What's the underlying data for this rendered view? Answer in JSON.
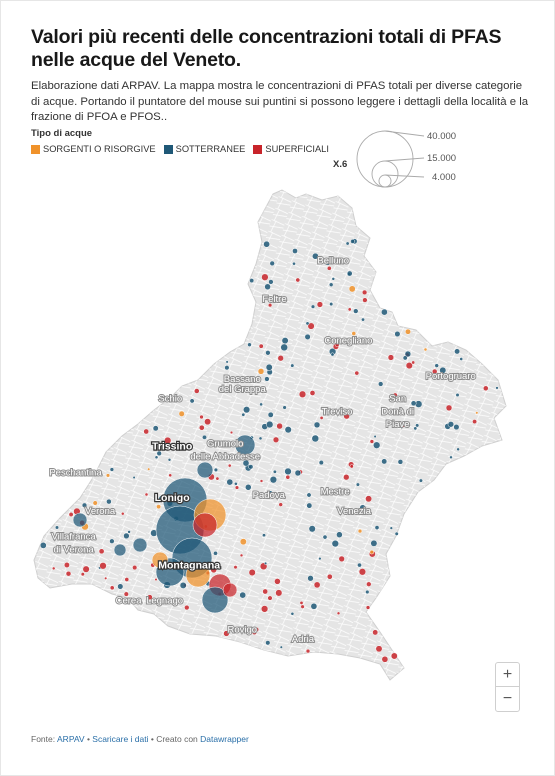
{
  "title": "Valori più recenti delle concentrazioni totali di PFAS nelle acque del Veneto.",
  "description": "Elaborazione dati ARPAV. La mappa mostra le concentrazioni di PFAS totali per diverse categorie di acque. Portando il puntatore del mouse sui puntini si possono leggere i dettagli della località e la frazione di PFOA e PFOS..",
  "legend": {
    "title": "Tipo di acque",
    "items": [
      {
        "label": "SORGENTI O RISORGIVE",
        "color": "#f0922a"
      },
      {
        "label": "SOTTERRANEE",
        "color": "#1f5877"
      },
      {
        "label": "SUPERFICIALI",
        "color": "#c8242a"
      }
    ]
  },
  "size_legend": {
    "multiplier": "X.6",
    "values": [
      "40.000",
      "15.000",
      "4.000"
    ]
  },
  "places": [
    {
      "name": "Belluno",
      "lon": 12.22,
      "lat": 46.14,
      "major": false
    },
    {
      "name": "Feltre",
      "lon": 11.91,
      "lat": 46.02,
      "major": false
    },
    {
      "name": "Conegliano",
      "lon": 12.3,
      "lat": 45.89,
      "major": false
    },
    {
      "name": "Portogruaro",
      "lon": 12.84,
      "lat": 45.78,
      "major": false
    },
    {
      "name": "Bassano",
      "lon": 11.74,
      "lat": 45.77,
      "major": false
    },
    {
      "name": "del Grappa",
      "lon": 11.74,
      "lat": 45.74,
      "major": false
    },
    {
      "name": "Schio",
      "lon": 11.36,
      "lat": 45.71,
      "major": false
    },
    {
      "name": "Treviso",
      "lon": 12.24,
      "lat": 45.67,
      "major": false
    },
    {
      "name": "San",
      "lon": 12.56,
      "lat": 45.71,
      "major": false
    },
    {
      "name": "Donà di",
      "lon": 12.56,
      "lat": 45.67,
      "major": false
    },
    {
      "name": "Piave",
      "lon": 12.56,
      "lat": 45.63,
      "major": false
    },
    {
      "name": "Trissino",
      "lon": 11.37,
      "lat": 45.56,
      "major": true
    },
    {
      "name": "Grumolo",
      "lon": 11.65,
      "lat": 45.57,
      "major": false
    },
    {
      "name": "delle Abbadesse",
      "lon": 11.65,
      "lat": 45.53,
      "major": false
    },
    {
      "name": "Peschantina",
      "lon": 10.86,
      "lat": 45.48,
      "major": false
    },
    {
      "name": "Padova",
      "lon": 11.88,
      "lat": 45.41,
      "major": false
    },
    {
      "name": "Mestre",
      "lon": 12.23,
      "lat": 45.42,
      "major": false
    },
    {
      "name": "Lonigo",
      "lon": 11.37,
      "lat": 45.4,
      "major": true
    },
    {
      "name": "Verona",
      "lon": 10.99,
      "lat": 45.36,
      "major": false
    },
    {
      "name": "Venezia",
      "lon": 12.33,
      "lat": 45.36,
      "major": false
    },
    {
      "name": "Villafranca",
      "lon": 10.85,
      "lat": 45.28,
      "major": false
    },
    {
      "name": "di Verona",
      "lon": 10.85,
      "lat": 45.24,
      "major": false
    },
    {
      "name": "Montagnana",
      "lon": 11.46,
      "lat": 45.19,
      "major": true
    },
    {
      "name": "Cerea",
      "lon": 11.14,
      "lat": 45.08,
      "major": false
    },
    {
      "name": "Legnago",
      "lon": 11.33,
      "lat": 45.08,
      "major": false
    },
    {
      "name": "Rovigo",
      "lon": 11.74,
      "lat": 44.99,
      "major": false
    },
    {
      "name": "Adria",
      "lon": 12.06,
      "lat": 44.96,
      "major": false
    }
  ],
  "footer": {
    "source_label": "Fonte:",
    "source_name": "ARPAV",
    "download": "Scaricare i dati",
    "created": "Creato con",
    "tool": "Datawrapper"
  },
  "zoom": {
    "in": "+",
    "out": "−"
  }
}
